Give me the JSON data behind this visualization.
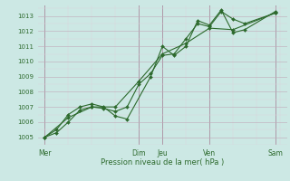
{
  "xlabel": "Pression niveau de la mer( hPa )",
  "bg_color": "#cce8e4",
  "plot_bg_color": "#cce8e4",
  "line_color": "#2d6a2d",
  "grid_color_major": "#b8b0c8",
  "grid_color_minor": "#d8d0e0",
  "ylim": [
    1004.5,
    1013.7
  ],
  "yticks": [
    1005,
    1006,
    1007,
    1008,
    1009,
    1010,
    1011,
    1012,
    1013
  ],
  "xlim": [
    -0.3,
    10.3
  ],
  "day_positions": [
    0,
    4,
    5,
    7,
    9.8
  ],
  "day_labels": [
    "Mer",
    "Dim",
    "Jeu",
    "Ven",
    "Sam"
  ],
  "vline_positions": [
    0,
    4,
    5,
    7,
    9.8
  ],
  "line1_x": [
    0,
    0.5,
    1.0,
    1.5,
    2.0,
    2.5,
    3.0,
    3.5,
    4.0,
    4.5,
    5.0,
    5.5,
    6.0,
    6.5,
    7.0,
    7.5,
    8.0,
    8.5,
    9.8
  ],
  "line1_y": [
    1005.0,
    1005.3,
    1006.0,
    1006.8,
    1007.0,
    1006.9,
    1006.7,
    1007.0,
    1008.5,
    1009.2,
    1010.4,
    1010.5,
    1011.5,
    1012.5,
    1012.3,
    1013.3,
    1012.8,
    1012.5,
    1013.2
  ],
  "line2_x": [
    0,
    0.5,
    1.0,
    1.5,
    2.0,
    2.5,
    3.0,
    3.5,
    4.5,
    5.0,
    5.5,
    6.0,
    6.5,
    7.0,
    7.5,
    8.0,
    8.5,
    9.8
  ],
  "line2_y": [
    1005.0,
    1005.5,
    1006.5,
    1007.0,
    1007.2,
    1007.0,
    1006.4,
    1006.2,
    1009.0,
    1011.0,
    1010.4,
    1011.0,
    1012.7,
    1012.4,
    1013.4,
    1011.9,
    1012.1,
    1013.3
  ],
  "line3_x": [
    0,
    1.0,
    2.0,
    3.0,
    4.0,
    5.0,
    6.0,
    7.0,
    8.0,
    9.8
  ],
  "line3_y": [
    1005.0,
    1006.3,
    1007.0,
    1007.0,
    1008.7,
    1010.5,
    1011.2,
    1012.2,
    1012.1,
    1013.2
  ],
  "marker_size": 2.0,
  "line_width": 0.8
}
